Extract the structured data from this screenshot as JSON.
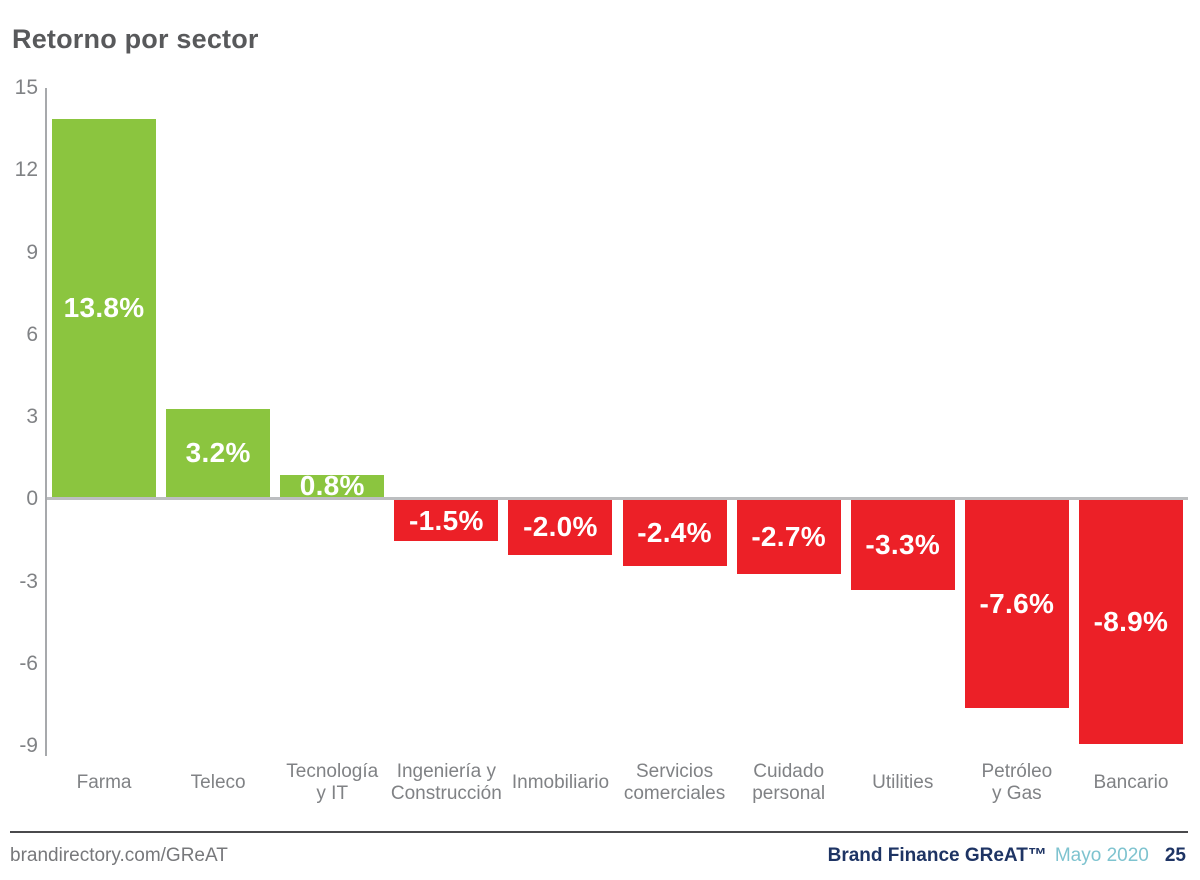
{
  "title": "Retorno por sector",
  "chart_data": {
    "type": "bar",
    "title": "Retorno por sector",
    "xlabel": "",
    "ylabel": "",
    "categories": [
      "Farma",
      "Teleco",
      "Tecnología y IT",
      "Ingeniería y Construcción",
      "Inmobiliario",
      "Servicios comerciales",
      "Cuidado personal",
      "Utilities",
      "Petróleo y Gas",
      "Bancario"
    ],
    "category_display": [
      "Farma",
      "Teleco",
      "Tecnología\ny IT",
      "Ingeniería y\nConstrucción",
      "Inmobiliario",
      "Servicios\ncomerciales",
      "Cuidado\npersonal",
      "Utilities",
      "Petróleo\ny Gas",
      "Bancario"
    ],
    "values": [
      13.8,
      3.2,
      0.8,
      -1.5,
      -2.0,
      -2.4,
      -2.7,
      -3.3,
      -7.6,
      -8.9
    ],
    "labels": [
      "13.8%",
      "3.2%",
      "0.8%",
      "-1.5%",
      "-2.0%",
      "-2.4%",
      "-2.7%",
      "-3.3%",
      "-7.6%",
      "-8.9%"
    ],
    "ylim": [
      -9,
      15
    ],
    "yticks": [
      15,
      12,
      9,
      6,
      3,
      0,
      -3,
      -6,
      -9
    ],
    "grid": false,
    "legend": "none",
    "positive_color": "#8BC53F",
    "negative_color": "#EC2027",
    "value_label_color": "#FFFFFF"
  },
  "footer": {
    "left": "brandirectory.com/GReAT",
    "brand": "Brand Finance GReAT™",
    "date": "Mayo 2020",
    "page": "25"
  },
  "colors": {
    "title": "#58595B",
    "axis_text": "#808285",
    "axis_line": "#A7A9AC",
    "zero_line": "#BCBEC0",
    "footer_rule": "#4A4A4C",
    "footer_url": "#77787B",
    "footer_navy": "#1E3464",
    "footer_lightblue": "#7EC3CF"
  }
}
